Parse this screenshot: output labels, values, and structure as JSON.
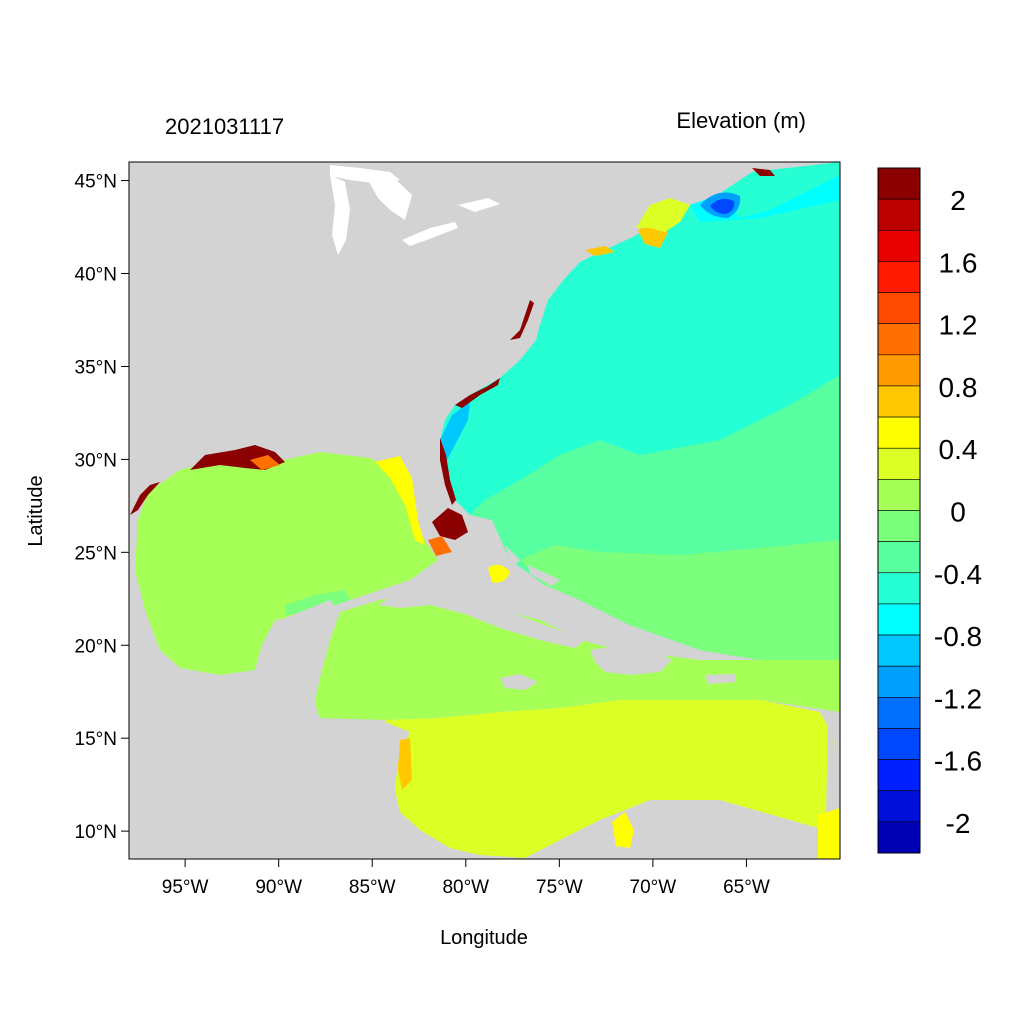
{
  "map": {
    "left_title": "2021031117",
    "right_title": "Elevation (m)",
    "xlabel": "Longitude",
    "ylabel": "Latitude",
    "lon_range": [
      -98,
      -60
    ],
    "lat_range": [
      8.5,
      46
    ],
    "x_ticks": [
      {
        "value": -95,
        "label": "95°W"
      },
      {
        "value": -90,
        "label": "90°W"
      },
      {
        "value": -85,
        "label": "85°W"
      },
      {
        "value": -80,
        "label": "80°W"
      },
      {
        "value": -75,
        "label": "75°W"
      },
      {
        "value": -70,
        "label": "70°W"
      },
      {
        "value": -65,
        "label": "65°W"
      }
    ],
    "y_ticks": [
      {
        "value": 10,
        "label": "10°N"
      },
      {
        "value": 15,
        "label": "15°N"
      },
      {
        "value": 20,
        "label": "20°N"
      },
      {
        "value": 25,
        "label": "25°N"
      },
      {
        "value": 30,
        "label": "30°N"
      },
      {
        "value": 35,
        "label": "35°N"
      },
      {
        "value": 40,
        "label": "40°N"
      },
      {
        "value": 45,
        "label": "45°N"
      }
    ],
    "land_color": "#d3d3d3",
    "lake_color": "#ffffff"
  },
  "colorbar": {
    "colors": [
      "#8b0000",
      "#bb0000",
      "#e80000",
      "#ff1a00",
      "#ff4a00",
      "#ff7000",
      "#ff9a00",
      "#ffc800",
      "#ffff00",
      "#dcff26",
      "#a6ff56",
      "#7cff7c",
      "#58ffa0",
      "#26ffd4",
      "#00ffff",
      "#00c8ff",
      "#00a0ff",
      "#0070ff",
      "#0048ff",
      "#0020ff",
      "#0010d8",
      "#0000b4"
    ],
    "labels": [
      {
        "text": "2",
        "boundary": 1
      },
      {
        "text": "1.6",
        "boundary": 3
      },
      {
        "text": "1.2",
        "boundary": 5
      },
      {
        "text": "0.8",
        "boundary": 7
      },
      {
        "text": "0.4",
        "boundary": 9
      },
      {
        "text": "0",
        "boundary": 11
      },
      {
        "text": "-0.4",
        "boundary": 13
      },
      {
        "text": "-0.8",
        "boundary": 15
      },
      {
        "text": "-1.2",
        "boundary": 17
      },
      {
        "text": "-1.6",
        "boundary": 19
      },
      {
        "text": "-2",
        "boundary": 21
      }
    ]
  }
}
